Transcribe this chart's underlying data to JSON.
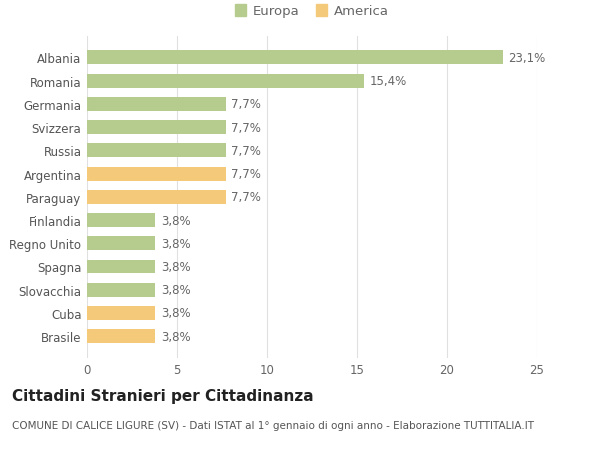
{
  "categories": [
    "Brasile",
    "Cuba",
    "Slovacchia",
    "Spagna",
    "Regno Unito",
    "Finlandia",
    "Paraguay",
    "Argentina",
    "Russia",
    "Svizzera",
    "Germania",
    "Romania",
    "Albania"
  ],
  "values": [
    3.8,
    3.8,
    3.8,
    3.8,
    3.8,
    3.8,
    7.7,
    7.7,
    7.7,
    7.7,
    7.7,
    15.4,
    23.1
  ],
  "colors": [
    "#f5c97a",
    "#f5c97a",
    "#b5cc8e",
    "#b5cc8e",
    "#b5cc8e",
    "#b5cc8e",
    "#f5c97a",
    "#f5c97a",
    "#b5cc8e",
    "#b5cc8e",
    "#b5cc8e",
    "#b5cc8e",
    "#b5cc8e"
  ],
  "labels": [
    "3,8%",
    "3,8%",
    "3,8%",
    "3,8%",
    "3,8%",
    "3,8%",
    "7,7%",
    "7,7%",
    "7,7%",
    "7,7%",
    "7,7%",
    "15,4%",
    "23,1%"
  ],
  "xlim": [
    0,
    25
  ],
  "xticks": [
    0,
    5,
    10,
    15,
    20,
    25
  ],
  "legend_labels": [
    "Europa",
    "America"
  ],
  "legend_colors": [
    "#b5cc8e",
    "#f5c97a"
  ],
  "title": "Cittadini Stranieri per Cittadinanza",
  "subtitle": "COMUNE DI CALICE LIGURE (SV) - Dati ISTAT al 1° gennaio di ogni anno - Elaborazione TUTTITALIA.IT",
  "bg_color": "#ffffff",
  "grid_color": "#e0e0e0",
  "bar_height": 0.6,
  "title_fontsize": 11,
  "subtitle_fontsize": 7.5,
  "label_fontsize": 8.5,
  "tick_fontsize": 8.5,
  "legend_fontsize": 9.5
}
